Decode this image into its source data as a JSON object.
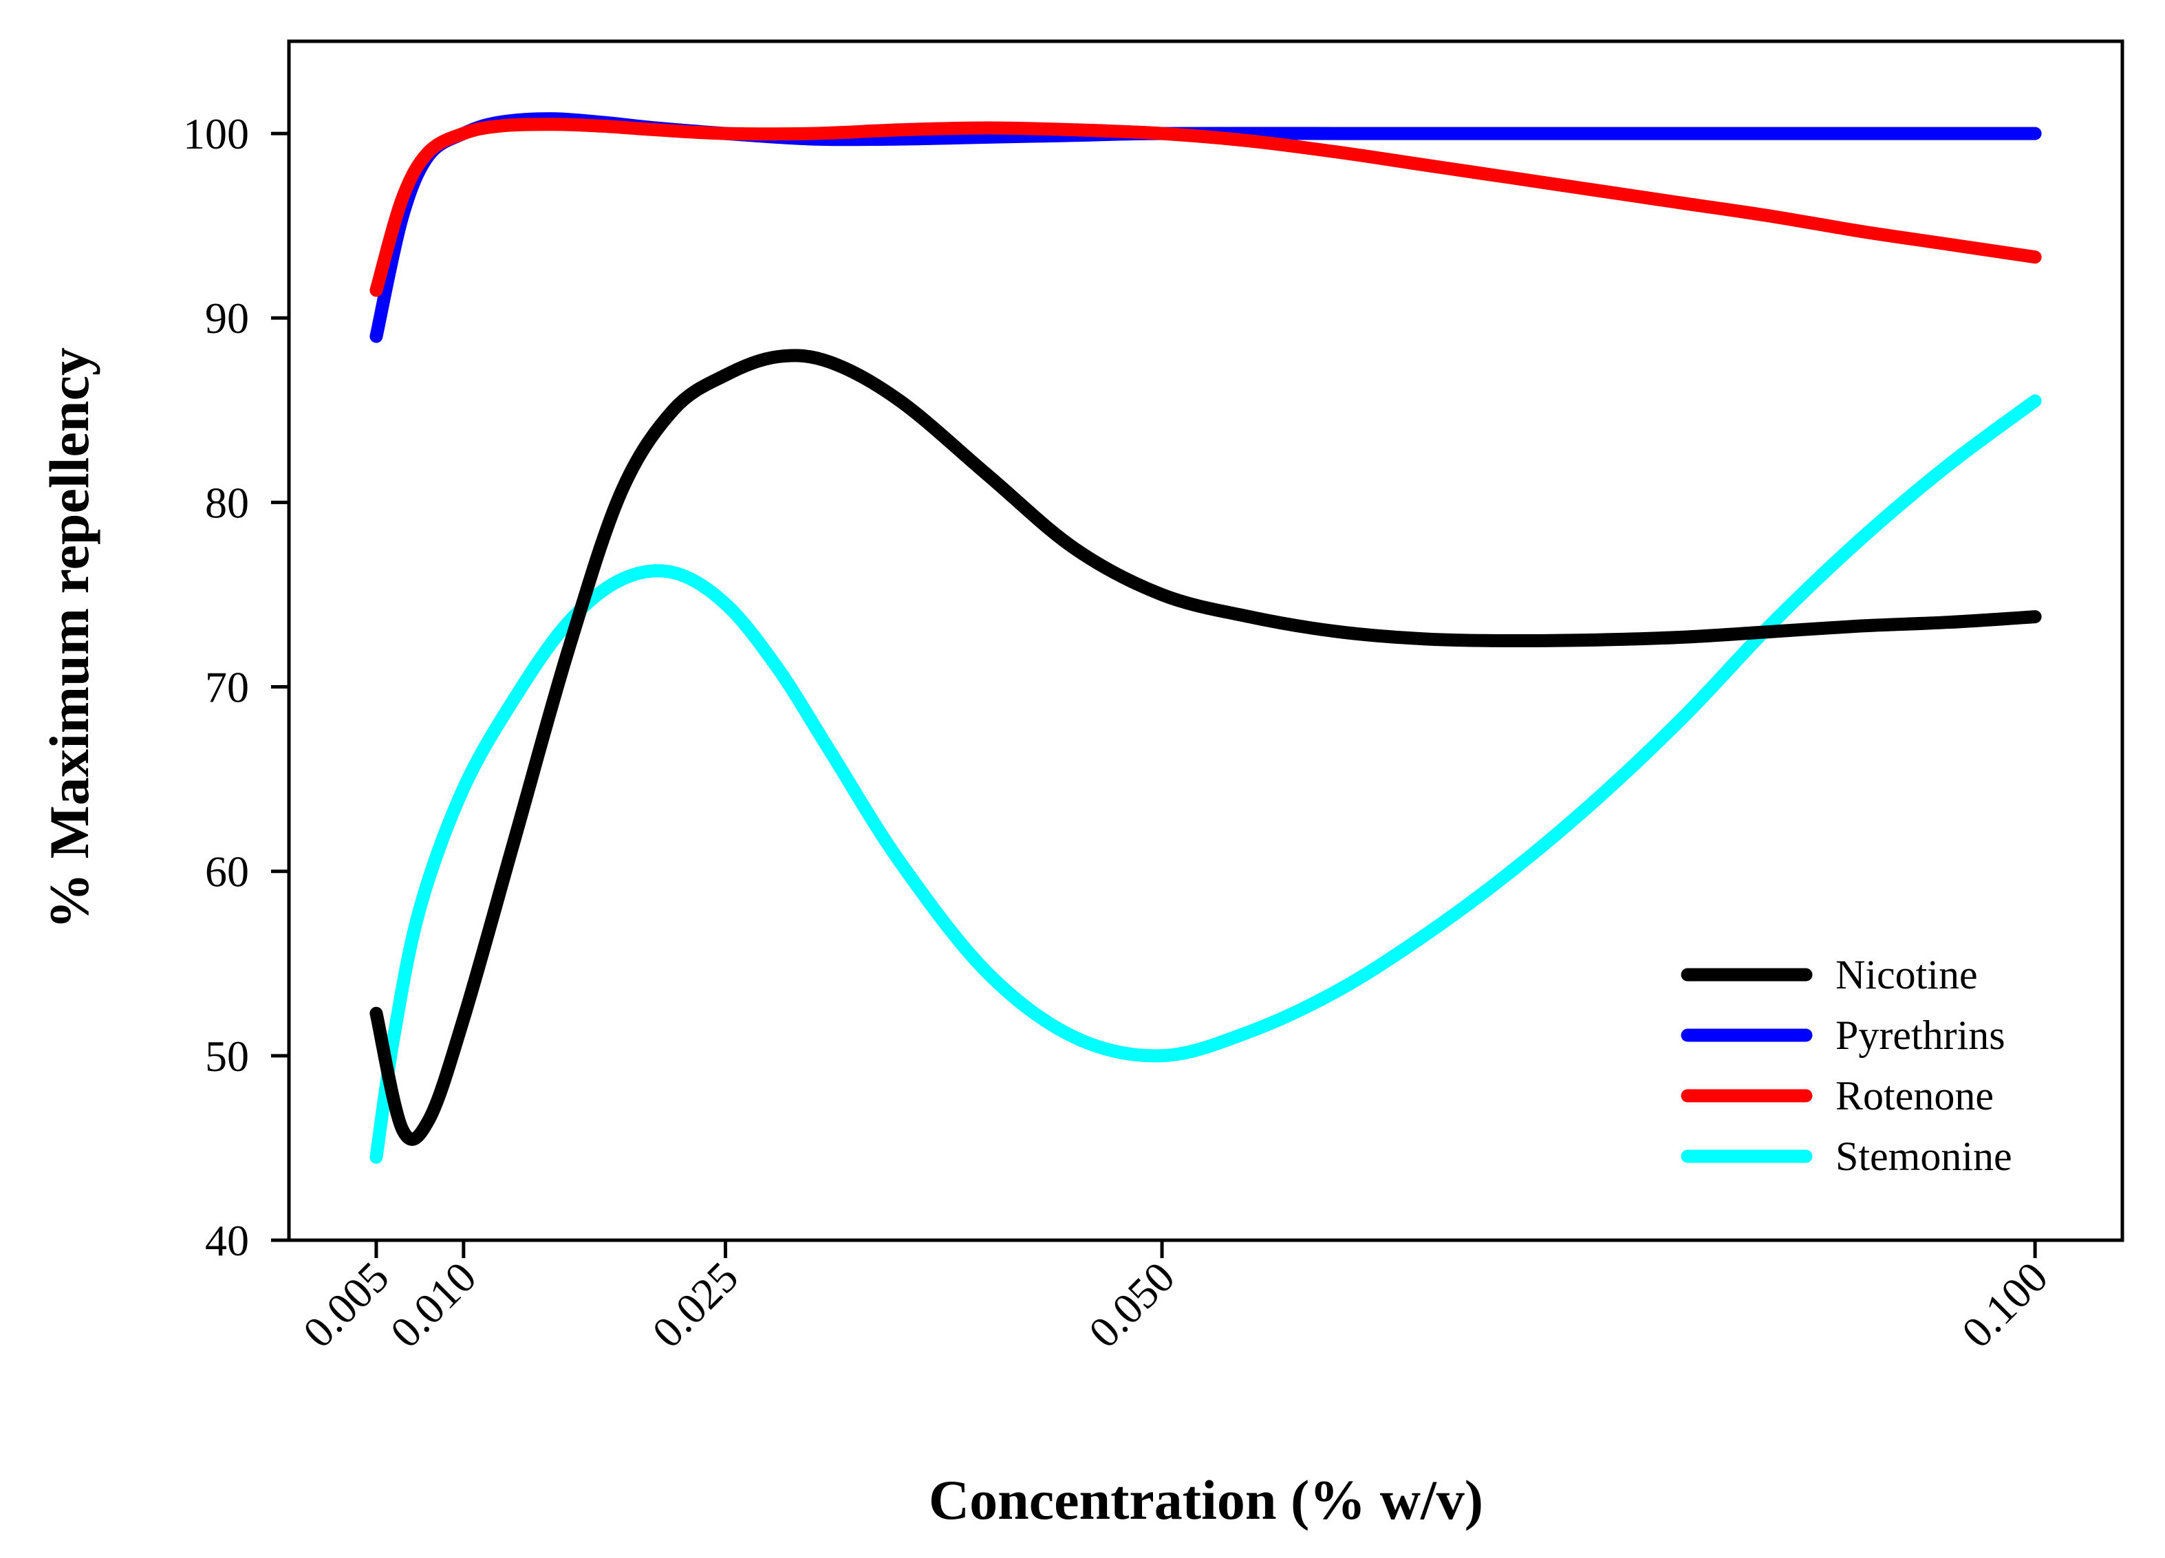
{
  "chart_data": {
    "type": "line",
    "title": "",
    "xlabel": "Concentration (% w/v)",
    "ylabel": "% Maximum repellency",
    "x_ticks": [
      0.005,
      0.01,
      0.025,
      0.05,
      0.1
    ],
    "x_tick_labels": [
      "0.005",
      "0.010",
      "0.025",
      "0.050",
      "0.100"
    ],
    "y_ticks": [
      40,
      50,
      60,
      70,
      80,
      90,
      100
    ],
    "y_tick_labels": [
      "40",
      "50",
      "60",
      "70",
      "80",
      "90",
      "100"
    ],
    "xlim": [
      0.0,
      0.105
    ],
    "ylim": [
      40,
      105
    ],
    "grid": false,
    "legend_position": "bottom-right",
    "series": [
      {
        "name": "Nicotine",
        "color": "#000000",
        "points": [
          [
            0.005,
            52.3
          ],
          [
            0.0065,
            46.0
          ],
          [
            0.008,
            46.5
          ],
          [
            0.01,
            52.0
          ],
          [
            0.013,
            62.0
          ],
          [
            0.016,
            72.0
          ],
          [
            0.019,
            80.5
          ],
          [
            0.022,
            85.0
          ],
          [
            0.025,
            86.9
          ],
          [
            0.028,
            87.9
          ],
          [
            0.031,
            87.6
          ],
          [
            0.035,
            85.5
          ],
          [
            0.04,
            81.5
          ],
          [
            0.045,
            77.5
          ],
          [
            0.05,
            75.0
          ],
          [
            0.055,
            73.8
          ],
          [
            0.06,
            73.0
          ],
          [
            0.065,
            72.6
          ],
          [
            0.07,
            72.5
          ],
          [
            0.075,
            72.55
          ],
          [
            0.08,
            72.7
          ],
          [
            0.085,
            73.0
          ],
          [
            0.09,
            73.3
          ],
          [
            0.095,
            73.5
          ],
          [
            0.1,
            73.8
          ]
        ]
      },
      {
        "name": "Pyrethrins",
        "color": "#0000ff",
        "points": [
          [
            0.005,
            89.0
          ],
          [
            0.0065,
            95.5
          ],
          [
            0.008,
            98.8
          ],
          [
            0.01,
            100.0
          ],
          [
            0.012,
            100.6
          ],
          [
            0.015,
            100.8
          ],
          [
            0.018,
            100.6
          ],
          [
            0.021,
            100.3
          ],
          [
            0.025,
            100.0
          ],
          [
            0.03,
            99.7
          ],
          [
            0.035,
            99.7
          ],
          [
            0.04,
            99.8
          ],
          [
            0.045,
            99.9
          ],
          [
            0.05,
            100.0
          ],
          [
            0.06,
            100.0
          ],
          [
            0.07,
            100.0
          ],
          [
            0.08,
            100.0
          ],
          [
            0.09,
            100.0
          ],
          [
            0.1,
            100.0
          ]
        ]
      },
      {
        "name": "Rotenone",
        "color": "#ff0000",
        "points": [
          [
            0.005,
            91.5
          ],
          [
            0.0065,
            96.5
          ],
          [
            0.008,
            99.0
          ],
          [
            0.01,
            100.0
          ],
          [
            0.012,
            100.4
          ],
          [
            0.015,
            100.5
          ],
          [
            0.018,
            100.4
          ],
          [
            0.021,
            100.2
          ],
          [
            0.025,
            100.0
          ],
          [
            0.03,
            100.0
          ],
          [
            0.035,
            100.2
          ],
          [
            0.04,
            100.3
          ],
          [
            0.045,
            100.2
          ],
          [
            0.05,
            100.0
          ],
          [
            0.055,
            99.6
          ],
          [
            0.06,
            99.0
          ],
          [
            0.065,
            98.3
          ],
          [
            0.07,
            97.6
          ],
          [
            0.075,
            96.9
          ],
          [
            0.08,
            96.2
          ],
          [
            0.085,
            95.5
          ],
          [
            0.09,
            94.7
          ],
          [
            0.095,
            94.0
          ],
          [
            0.1,
            93.3
          ]
        ]
      },
      {
        "name": "Stemonine",
        "color": "#00ffff",
        "points": [
          [
            0.005,
            44.5
          ],
          [
            0.006,
            51.0
          ],
          [
            0.0075,
            58.0
          ],
          [
            0.01,
            64.5
          ],
          [
            0.013,
            69.5
          ],
          [
            0.016,
            73.5
          ],
          [
            0.019,
            75.8
          ],
          [
            0.022,
            76.2
          ],
          [
            0.025,
            74.5
          ],
          [
            0.028,
            71.0
          ],
          [
            0.031,
            66.5
          ],
          [
            0.035,
            60.5
          ],
          [
            0.04,
            54.5
          ],
          [
            0.045,
            51.0
          ],
          [
            0.05,
            50.0
          ],
          [
            0.055,
            51.3
          ],
          [
            0.06,
            53.5
          ],
          [
            0.065,
            56.5
          ],
          [
            0.07,
            60.0
          ],
          [
            0.075,
            64.0
          ],
          [
            0.08,
            68.5
          ],
          [
            0.085,
            73.5
          ],
          [
            0.09,
            78.0
          ],
          [
            0.095,
            82.0
          ],
          [
            0.1,
            85.5
          ]
        ]
      }
    ]
  }
}
